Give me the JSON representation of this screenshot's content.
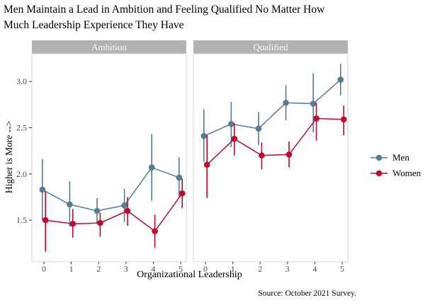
{
  "title": {
    "line1": "Men Maintain a Lead in Ambition and Feeling Qualified No Matter How",
    "line2": "Much Leadership Experience They Have"
  },
  "chart_data": {
    "type": "line",
    "subtype": "pointrange-faceted",
    "title": "Men Maintain a Lead in Ambition and Feeling Qualified No Matter How Much Leadership Experience They Have",
    "xlabel": "Organizational Leadership",
    "ylabel": "Higher is More -->",
    "caption": "Source: October 2021 Survey.",
    "x": [
      0,
      1,
      2,
      3,
      4,
      5
    ],
    "yticks": [
      "1.5",
      "2.0",
      "2.5",
      "3.0"
    ],
    "ytick_values": [
      1.5,
      2.0,
      2.5,
      3.0
    ],
    "ylim": [
      1.05,
      3.3
    ],
    "grid": false,
    "legend_position": "right",
    "strip_bg": "#b3b3b3",
    "strip_text_color": "#f7f7f7",
    "panel_border_color": "#d4d4d4",
    "tick_color": "#333333",
    "tick_label_color": "#4a4a4a",
    "facets": [
      {
        "label": "Ambition",
        "series": [
          {
            "name": "Men",
            "color": "#557d92",
            "values": [
              1.83,
              1.67,
              1.6,
              1.66,
              2.07,
              1.96
            ],
            "ci_low": [
              1.5,
              1.43,
              1.46,
              1.48,
              1.71,
              1.74
            ],
            "ci_high": [
              2.16,
              1.92,
              1.74,
              1.84,
              2.43,
              2.18
            ]
          },
          {
            "name": "Women",
            "color": "#c00a2e",
            "values": [
              1.5,
              1.46,
              1.47,
              1.6,
              1.38,
              1.79
            ],
            "ci_low": [
              1.16,
              1.31,
              1.32,
              1.44,
              1.2,
              1.63
            ],
            "ci_high": [
              1.81,
              1.62,
              1.58,
              1.75,
              1.56,
              1.95
            ]
          }
        ]
      },
      {
        "label": "Qualified",
        "series": [
          {
            "name": "Men",
            "color": "#557d92",
            "values": [
              2.41,
              2.54,
              2.49,
              2.77,
              2.76,
              3.02
            ],
            "ci_low": [
              2.13,
              2.29,
              2.31,
              2.58,
              2.45,
              2.85
            ],
            "ci_high": [
              2.7,
              2.78,
              2.67,
              2.96,
              3.09,
              3.19
            ]
          },
          {
            "name": "Women",
            "color": "#c00a2e",
            "values": [
              2.1,
              2.38,
              2.2,
              2.21,
              2.6,
              2.59
            ],
            "ci_low": [
              1.74,
              2.2,
              2.05,
              2.07,
              2.36,
              2.42
            ],
            "ci_high": [
              2.42,
              2.55,
              2.34,
              2.35,
              2.77,
              2.74
            ]
          }
        ]
      }
    ],
    "legend": [
      {
        "label": "Men",
        "color": "#557d92"
      },
      {
        "label": "Women",
        "color": "#c00a2e"
      }
    ]
  }
}
